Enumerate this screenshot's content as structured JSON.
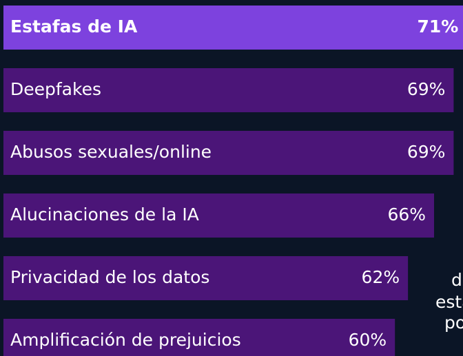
{
  "chart_data": {
    "type": "bar",
    "orientation": "horizontal",
    "categories": [
      "Estafas de IA",
      "Deepfakes",
      "Abusos sexuales/online",
      "Alucinaciones de la IA",
      "Privacidad de los datos",
      "Amplificación de prejuicios"
    ],
    "values": [
      71,
      69,
      69,
      66,
      62,
      60
    ],
    "value_labels": [
      "71%",
      "69%",
      "69%",
      "66%",
      "62%",
      "60%"
    ],
    "colors": [
      "#7d42de",
      "#4b1578",
      "#4b1578",
      "#4b1578",
      "#4b1578",
      "#4b1578"
    ],
    "annotation": [
      "de",
      "esta",
      "po"
    ]
  }
}
